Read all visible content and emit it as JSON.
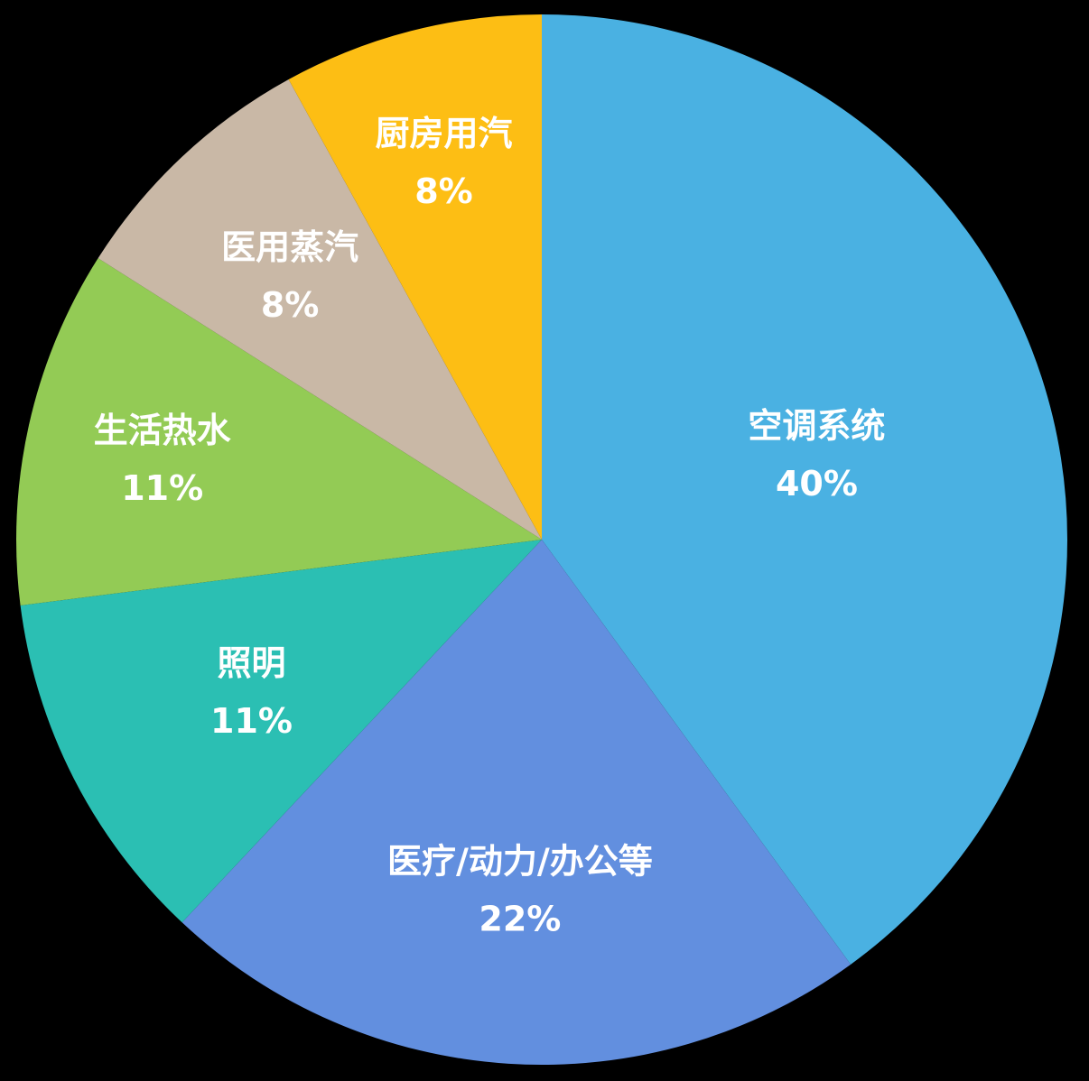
{
  "chart_data": {
    "type": "pie",
    "start_angle_deg": 0,
    "direction": "clockwise",
    "slices": [
      {
        "label": "空调系统",
        "value_label": "40%",
        "value": 40,
        "color": "#4AB1E2"
      },
      {
        "label": "医疗/动力/办公等",
        "value_label": "22%",
        "value": 22,
        "color": "#628FDF"
      },
      {
        "label": "照明",
        "value_label": "11%",
        "value": 11,
        "color": "#2BBFB3"
      },
      {
        "label": "生活热水",
        "value_label": "11%",
        "value": 11,
        "color": "#93CB55"
      },
      {
        "label": "医用蒸汽",
        "value_label": "8%",
        "value": 8,
        "color": "#C9B8A6"
      },
      {
        "label": "厨房用汽",
        "value_label": "8%",
        "value": 8,
        "color": "#FDBE14"
      }
    ]
  },
  "background_color": "#000000"
}
